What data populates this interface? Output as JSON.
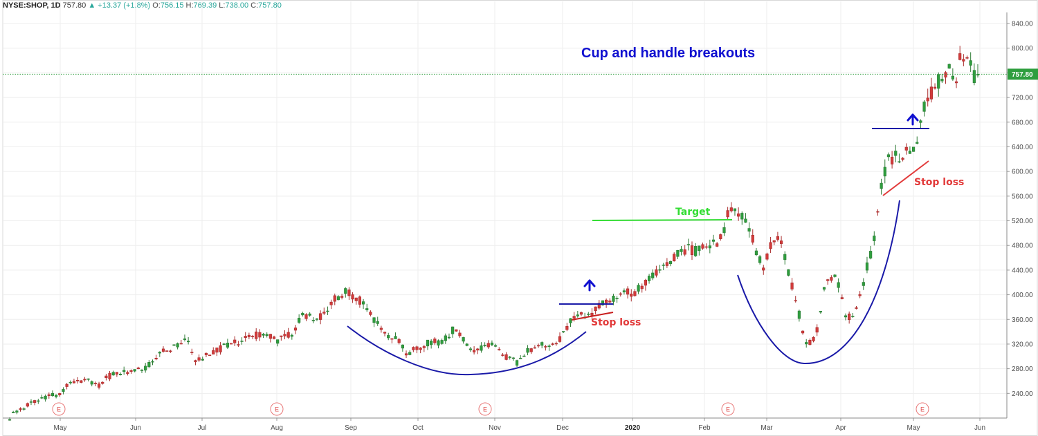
{
  "header": {
    "symbol": "NYSE:SHOP, 1D",
    "last": "757.80",
    "change": "+13.37 (+1.8%)",
    "o_label": "O:",
    "o_value": "756.15",
    "h_label": "H:",
    "h_value": "769.39",
    "l_label": "L:",
    "l_value": "738.00",
    "c_label": "C:",
    "c_value": "757.80"
  },
  "chart_data": {
    "type": "candlestick",
    "title": "Cup and handle breakouts",
    "y_ticks": [
      "840.00",
      "800.00",
      "760.00",
      "720.00",
      "680.00",
      "640.00",
      "600.00",
      "560.00",
      "520.00",
      "480.00",
      "440.00",
      "400.00",
      "360.00",
      "320.00",
      "280.00",
      "240.00"
    ],
    "x_months": [
      "May",
      "Jun",
      "Jul",
      "Aug",
      "Sep",
      "Oct",
      "Nov",
      "Dec",
      "2020",
      "Feb",
      "Mar",
      "Apr",
      "May",
      "Jun"
    ],
    "ylim": [
      200,
      858
    ],
    "grid": true,
    "last_price_label": "757.80",
    "last_price": 757.8,
    "earnings_marker": "E",
    "earnings_count": 6,
    "annotations": {
      "stop_loss_1": "Stop loss",
      "stop_loss_2": "Stop loss",
      "target": "Target"
    },
    "price_path": [
      [
        0,
        200
      ],
      [
        10,
        212
      ],
      [
        20,
        218
      ],
      [
        30,
        224
      ],
      [
        40,
        228
      ],
      [
        50,
        232
      ],
      [
        60,
        236
      ],
      [
        70,
        238
      ],
      [
        80,
        248
      ],
      [
        90,
        258
      ],
      [
        100,
        262
      ],
      [
        110,
        260
      ],
      [
        120,
        258
      ],
      [
        130,
        252
      ],
      [
        140,
        265
      ],
      [
        150,
        270
      ],
      [
        160,
        272
      ],
      [
        170,
        275
      ],
      [
        180,
        278
      ],
      [
        190,
        278
      ],
      [
        200,
        282
      ],
      [
        210,
        296
      ],
      [
        220,
        306
      ],
      [
        230,
        312
      ],
      [
        240,
        314
      ],
      [
        250,
        322
      ],
      [
        260,
        330
      ],
      [
        270,
        288
      ],
      [
        280,
        296
      ],
      [
        290,
        302
      ],
      [
        300,
        308
      ],
      [
        310,
        314
      ],
      [
        320,
        318
      ],
      [
        330,
        322
      ],
      [
        340,
        326
      ],
      [
        350,
        332
      ],
      [
        360,
        334
      ],
      [
        370,
        338
      ],
      [
        380,
        332
      ],
      [
        390,
        322
      ],
      [
        400,
        340
      ],
      [
        410,
        330
      ],
      [
        420,
        356
      ],
      [
        430,
        368
      ],
      [
        440,
        366
      ],
      [
        450,
        360
      ],
      [
        460,
        372
      ],
      [
        470,
        390
      ],
      [
        480,
        396
      ],
      [
        490,
        404
      ],
      [
        500,
        400
      ],
      [
        510,
        392
      ],
      [
        520,
        378
      ],
      [
        530,
        362
      ],
      [
        540,
        346
      ],
      [
        550,
        338
      ],
      [
        560,
        330
      ],
      [
        570,
        324
      ],
      [
        580,
        304
      ],
      [
        590,
        310
      ],
      [
        600,
        316
      ],
      [
        610,
        322
      ],
      [
        620,
        326
      ],
      [
        630,
        320
      ],
      [
        640,
        334
      ],
      [
        650,
        346
      ],
      [
        660,
        328
      ],
      [
        670,
        316
      ],
      [
        680,
        302
      ],
      [
        690,
        318
      ],
      [
        700,
        320
      ],
      [
        710,
        312
      ],
      [
        720,
        302
      ],
      [
        730,
        296
      ],
      [
        740,
        290
      ],
      [
        750,
        304
      ],
      [
        760,
        310
      ],
      [
        770,
        316
      ],
      [
        780,
        318
      ],
      [
        790,
        314
      ],
      [
        800,
        324
      ],
      [
        810,
        340
      ],
      [
        820,
        358
      ],
      [
        830,
        364
      ],
      [
        840,
        366
      ],
      [
        850,
        372
      ],
      [
        860,
        384
      ],
      [
        870,
        390
      ],
      [
        880,
        392
      ],
      [
        890,
        400
      ],
      [
        900,
        406
      ],
      [
        910,
        404
      ],
      [
        920,
        410
      ],
      [
        930,
        420
      ],
      [
        940,
        430
      ],
      [
        950,
        444
      ],
      [
        960,
        454
      ],
      [
        970,
        462
      ],
      [
        980,
        470
      ],
      [
        990,
        474
      ],
      [
        1000,
        470
      ],
      [
        1010,
        476
      ],
      [
        1020,
        480
      ],
      [
        1030,
        484
      ],
      [
        1040,
        492
      ],
      [
        1050,
        540
      ],
      [
        1060,
        530
      ],
      [
        1070,
        524
      ],
      [
        1080,
        510
      ],
      [
        1090,
        472
      ],
      [
        1100,
        445
      ],
      [
        1110,
        480
      ],
      [
        1120,
        494
      ],
      [
        1130,
        470
      ],
      [
        1140,
        420
      ],
      [
        1150,
        380
      ],
      [
        1160,
        326
      ],
      [
        1170,
        322
      ],
      [
        1180,
        350
      ],
      [
        1190,
        418
      ],
      [
        1200,
        430
      ],
      [
        1210,
        418
      ],
      [
        1220,
        368
      ],
      [
        1230,
        362
      ],
      [
        1240,
        394
      ],
      [
        1250,
        440
      ],
      [
        1260,
        476
      ],
      [
        1270,
        560
      ],
      [
        1280,
        614
      ],
      [
        1290,
        624
      ],
      [
        1300,
        618
      ],
      [
        1310,
        630
      ],
      [
        1320,
        632
      ],
      [
        1330,
        690
      ],
      [
        1340,
        714
      ],
      [
        1350,
        742
      ],
      [
        1360,
        750
      ],
      [
        1370,
        764
      ],
      [
        1380,
        744
      ],
      [
        1390,
        796
      ],
      [
        1400,
        780
      ],
      [
        1410,
        744
      ],
      [
        1413,
        757.8
      ]
    ]
  }
}
